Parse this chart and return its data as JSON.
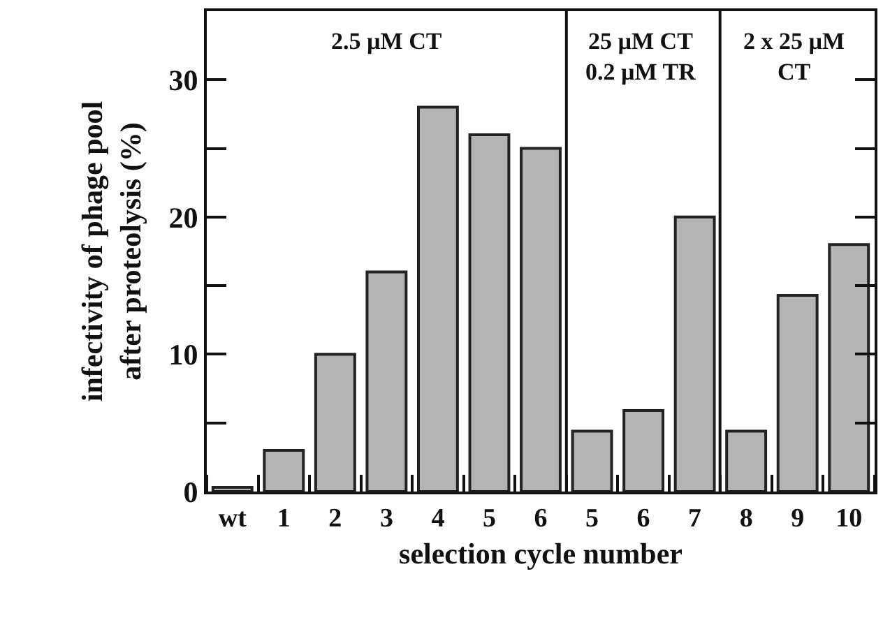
{
  "chart_data": {
    "type": "bar",
    "xlabel": "selection cycle number",
    "ylabel": "infectivity of phage pool\nafter proteolysis (%)",
    "categories": [
      "wt",
      "1",
      "2",
      "3",
      "4",
      "5",
      "6",
      "5",
      "6",
      "7",
      "8",
      "9",
      "10"
    ],
    "values": [
      0.3,
      3,
      10,
      16,
      28,
      26,
      25,
      4.4,
      5.9,
      20,
      4.4,
      14.3,
      18
    ],
    "color": "#b4b4b4",
    "ylim": [
      0,
      35
    ],
    "yticks": [
      0,
      {
        "value": 5,
        "label": null
      },
      10,
      {
        "value": 15,
        "label": null
      },
      20,
      {
        "value": 25,
        "label": null
      },
      30
    ],
    "grid": false,
    "annotations": [
      "2.5 µM CT",
      "25 µM CT\n0.2 µM TR",
      "2 x 25 µM\nCT"
    ]
  }
}
